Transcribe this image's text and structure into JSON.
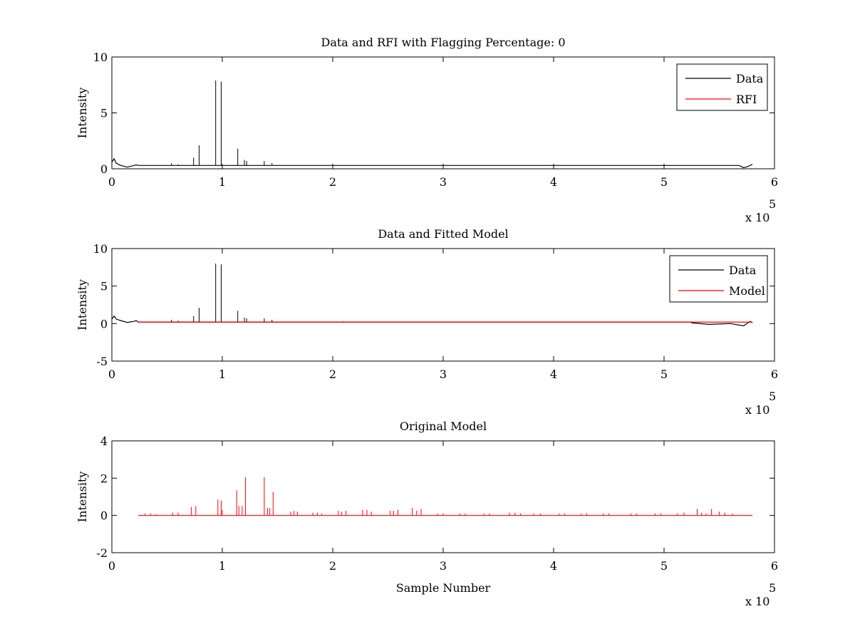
{
  "chart_data": [
    {
      "type": "line",
      "title": "Data and RFI with Flagging Percentage: 0",
      "xlabel": "",
      "ylabel": "Intensity",
      "xlim": [
        0,
        6
      ],
      "ylim": [
        0,
        10
      ],
      "xticks": [
        "0",
        "1",
        "2",
        "3",
        "4",
        "5",
        "6"
      ],
      "yticks": [
        "0",
        "5",
        "10"
      ],
      "x_multiplier_base": "x 10",
      "x_multiplier_exp": "5",
      "legend_position": "top-right",
      "series": [
        {
          "name": "Data",
          "color": "#000000",
          "baseline": 0.3,
          "start_segment": [
            [
              0.0,
              0.6
            ],
            [
              0.02,
              0.9
            ],
            [
              0.04,
              0.5
            ],
            [
              0.08,
              0.3
            ],
            [
              0.14,
              0.15
            ],
            [
              0.2,
              0.3
            ],
            [
              0.22,
              0.35
            ],
            [
              0.24,
              0.3
            ]
          ],
          "end_segment": [
            [
              5.68,
              0.3
            ],
            [
              5.72,
              0.1
            ],
            [
              5.76,
              0.2
            ],
            [
              5.8,
              0.4
            ]
          ],
          "spikes": [
            [
              0.54,
              0.5
            ],
            [
              0.6,
              0.4
            ],
            [
              0.74,
              1.0
            ],
            [
              0.79,
              2.1
            ],
            [
              0.94,
              7.9
            ],
            [
              0.99,
              7.8
            ],
            [
              1.14,
              1.8
            ],
            [
              1.2,
              0.8
            ],
            [
              1.22,
              0.7
            ],
            [
              1.38,
              0.7
            ],
            [
              1.45,
              0.5
            ],
            [
              2.1,
              0.3
            ],
            [
              2.8,
              0.3
            ]
          ]
        },
        {
          "name": "RFI",
          "color": "#ff0000",
          "hidden_under_data": true
        }
      ]
    },
    {
      "type": "line",
      "title": "Data and Fitted Model",
      "xlabel": "",
      "ylabel": "Intensity",
      "xlim": [
        0,
        6
      ],
      "ylim": [
        -5,
        10
      ],
      "xticks": [
        "0",
        "1",
        "2",
        "3",
        "4",
        "5",
        "6"
      ],
      "yticks": [
        "-5",
        "0",
        "5",
        "10"
      ],
      "x_multiplier_base": "x 10",
      "x_multiplier_exp": "5",
      "legend_position": "top-right",
      "series": [
        {
          "name": "Data",
          "color": "#000000",
          "baseline": 0.2,
          "start_segment": [
            [
              0.0,
              0.6
            ],
            [
              0.02,
              1.0
            ],
            [
              0.04,
              0.6
            ],
            [
              0.08,
              0.4
            ],
            [
              0.14,
              0.15
            ],
            [
              0.2,
              0.3
            ],
            [
              0.22,
              0.4
            ],
            [
              0.24,
              0.2
            ]
          ],
          "end_segment": [
            [
              5.25,
              0.1
            ],
            [
              5.4,
              -0.1
            ],
            [
              5.6,
              0.0
            ],
            [
              5.72,
              -0.3
            ],
            [
              5.78,
              0.3
            ],
            [
              5.8,
              0.1
            ]
          ],
          "spikes": [
            [
              0.54,
              0.5
            ],
            [
              0.6,
              0.4
            ],
            [
              0.74,
              1.0
            ],
            [
              0.79,
              2.1
            ],
            [
              0.94,
              8.0
            ],
            [
              0.99,
              7.9
            ],
            [
              1.14,
              1.7
            ],
            [
              1.2,
              0.8
            ],
            [
              1.22,
              0.7
            ],
            [
              1.38,
              0.7
            ],
            [
              1.45,
              0.5
            ],
            [
              2.1,
              0.3
            ]
          ]
        },
        {
          "name": "Model",
          "color": "#ff0000",
          "baseline": 0.2,
          "x_range": [
            0.24,
            5.8
          ]
        }
      ]
    },
    {
      "type": "line",
      "title": "Original Model",
      "xlabel": "Sample Number",
      "ylabel": "Intensity",
      "xlim": [
        0,
        6
      ],
      "ylim": [
        -2,
        4
      ],
      "xticks": [
        "0",
        "1",
        "2",
        "3",
        "4",
        "5",
        "6"
      ],
      "yticks": [
        "-2",
        "0",
        "2",
        "4"
      ],
      "x_multiplier_base": "x 10",
      "x_multiplier_exp": "5",
      "series": [
        {
          "name": "",
          "color": "#ff0000",
          "baseline": 0,
          "x_range": [
            0.24,
            5.8
          ],
          "spikes": [
            [
              0.3,
              0.1
            ],
            [
              0.35,
              0.1
            ],
            [
              0.4,
              0.05
            ],
            [
              0.55,
              0.15
            ],
            [
              0.6,
              0.15
            ],
            [
              0.72,
              0.45
            ],
            [
              0.76,
              0.5
            ],
            [
              0.96,
              0.85
            ],
            [
              0.99,
              0.8
            ],
            [
              1.0,
              0.3
            ],
            [
              1.13,
              1.35
            ],
            [
              1.15,
              0.5
            ],
            [
              1.18,
              0.5
            ],
            [
              1.21,
              2.05
            ],
            [
              1.38,
              2.05
            ],
            [
              1.41,
              0.4
            ],
            [
              1.43,
              0.4
            ],
            [
              1.46,
              1.25
            ],
            [
              1.62,
              0.2
            ],
            [
              1.65,
              0.25
            ],
            [
              1.68,
              0.2
            ],
            [
              1.82,
              0.15
            ],
            [
              1.86,
              0.15
            ],
            [
              1.9,
              0.1
            ],
            [
              2.05,
              0.25
            ],
            [
              2.08,
              0.2
            ],
            [
              2.12,
              0.25
            ],
            [
              2.27,
              0.3
            ],
            [
              2.31,
              0.3
            ],
            [
              2.35,
              0.2
            ],
            [
              2.52,
              0.25
            ],
            [
              2.55,
              0.25
            ],
            [
              2.59,
              0.3
            ],
            [
              2.72,
              0.4
            ],
            [
              2.76,
              0.25
            ],
            [
              2.8,
              0.35
            ],
            [
              2.95,
              0.1
            ],
            [
              3.0,
              0.1
            ],
            [
              3.15,
              0.1
            ],
            [
              3.2,
              0.1
            ],
            [
              3.37,
              0.1
            ],
            [
              3.42,
              0.1
            ],
            [
              3.6,
              0.15
            ],
            [
              3.65,
              0.15
            ],
            [
              3.7,
              0.1
            ],
            [
              3.82,
              0.1
            ],
            [
              3.88,
              0.1
            ],
            [
              4.05,
              0.1
            ],
            [
              4.1,
              0.1
            ],
            [
              4.25,
              0.1
            ],
            [
              4.3,
              0.1
            ],
            [
              4.45,
              0.1
            ],
            [
              4.5,
              0.1
            ],
            [
              4.7,
              0.1
            ],
            [
              4.75,
              0.1
            ],
            [
              4.92,
              0.1
            ],
            [
              4.97,
              0.1
            ],
            [
              5.12,
              0.1
            ],
            [
              5.18,
              0.15
            ],
            [
              5.3,
              0.35
            ],
            [
              5.34,
              0.15
            ],
            [
              5.38,
              0.1
            ],
            [
              5.43,
              0.35
            ],
            [
              5.5,
              0.2
            ],
            [
              5.55,
              0.15
            ],
            [
              5.62,
              0.1
            ]
          ]
        }
      ]
    }
  ]
}
